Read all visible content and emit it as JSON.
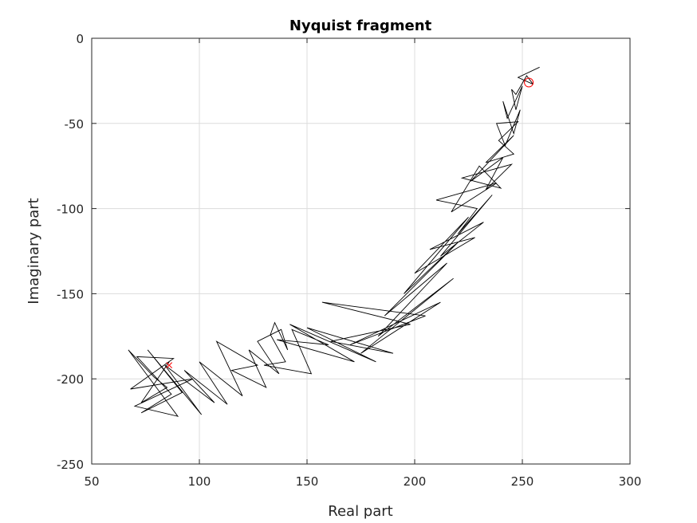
{
  "chart_data": {
    "type": "line",
    "title": "Nyquist fragment",
    "xlabel": "Real part",
    "ylabel": "Imaginary part",
    "xlim": [
      50,
      300
    ],
    "ylim": [
      -250,
      0
    ],
    "xticks": [
      50,
      100,
      150,
      200,
      250,
      300
    ],
    "yticks": [
      0,
      -50,
      -100,
      -150,
      -200,
      -250
    ],
    "xtick_labels": [
      "50",
      "100",
      "150",
      "200",
      "250",
      "300"
    ],
    "ytick_labels": [
      "0",
      "-50",
      "-100",
      "-150",
      "-200",
      "-250"
    ],
    "grid": true,
    "colors": {
      "line": "#000000",
      "markers": "#ff0000",
      "grid": "#dcdcdc"
    },
    "series": [
      {
        "color": "#000000",
        "points": [
          [
            258,
            -17
          ],
          [
            248,
            -23
          ],
          [
            255,
            -27
          ],
          [
            252,
            -22
          ],
          [
            247,
            -33
          ],
          [
            245,
            -30
          ],
          [
            247,
            -42
          ],
          [
            250,
            -28
          ],
          [
            243,
            -47
          ],
          [
            241,
            -37
          ],
          [
            246,
            -56
          ],
          [
            249,
            -42
          ],
          [
            242,
            -63
          ],
          [
            238,
            -50
          ],
          [
            248,
            -49
          ],
          [
            239,
            -60
          ],
          [
            246,
            -68
          ],
          [
            233,
            -73
          ],
          [
            246,
            -57
          ],
          [
            226,
            -84
          ],
          [
            241,
            -70
          ],
          [
            233,
            -89
          ],
          [
            245,
            -74
          ],
          [
            222,
            -82
          ],
          [
            240,
            -88
          ],
          [
            230,
            -75
          ],
          [
            217,
            -102
          ],
          [
            238,
            -85
          ],
          [
            210,
            -95
          ],
          [
            229,
            -100
          ],
          [
            220,
            -115
          ],
          [
            236,
            -92
          ],
          [
            212,
            -128
          ],
          [
            232,
            -108
          ],
          [
            207,
            -124
          ],
          [
            228,
            -117
          ],
          [
            200,
            -138
          ],
          [
            225,
            -105
          ],
          [
            195,
            -150
          ],
          [
            220,
            -120
          ],
          [
            186,
            -163
          ],
          [
            215,
            -132
          ],
          [
            183,
            -175
          ],
          [
            218,
            -141
          ],
          [
            175,
            -185
          ],
          [
            212,
            -155
          ],
          [
            170,
            -180
          ],
          [
            205,
            -163
          ],
          [
            157,
            -155
          ],
          [
            198,
            -168
          ],
          [
            161,
            -178
          ],
          [
            190,
            -185
          ],
          [
            150,
            -170
          ],
          [
            182,
            -190
          ],
          [
            142,
            -168
          ],
          [
            172,
            -190
          ],
          [
            136,
            -177
          ],
          [
            160,
            -180
          ],
          [
            143,
            -171
          ],
          [
            152,
            -197
          ],
          [
            130,
            -192
          ],
          [
            140,
            -190
          ],
          [
            133,
            -174
          ],
          [
            135,
            -167
          ],
          [
            141,
            -183
          ],
          [
            138,
            -171
          ],
          [
            127,
            -178
          ],
          [
            137,
            -197
          ],
          [
            123,
            -183
          ],
          [
            131,
            -205
          ],
          [
            115,
            -195
          ],
          [
            127,
            -192
          ],
          [
            108,
            -178
          ],
          [
            120,
            -210
          ],
          [
            100,
            -190
          ],
          [
            113,
            -215
          ],
          [
            93,
            -195
          ],
          [
            107,
            -214
          ],
          [
            84,
            -192
          ],
          [
            101,
            -221
          ],
          [
            76,
            -183
          ],
          [
            92,
            -208
          ],
          [
            73,
            -220
          ],
          [
            87,
            -209
          ],
          [
            71,
            -187
          ],
          [
            88,
            -188
          ],
          [
            68,
            -206
          ],
          [
            97,
            -200
          ],
          [
            70,
            -216
          ],
          [
            90,
            -222
          ],
          [
            67,
            -183
          ],
          [
            79,
            -199
          ],
          [
            85,
            -205
          ],
          [
            73,
            -214
          ],
          [
            86,
            -190
          ]
        ]
      }
    ],
    "markers": [
      {
        "shape": "cross",
        "x": 86,
        "y": -192,
        "color": "#ff0000"
      },
      {
        "shape": "circle",
        "x": 253,
        "y": -26,
        "color": "#ff0000"
      }
    ]
  }
}
